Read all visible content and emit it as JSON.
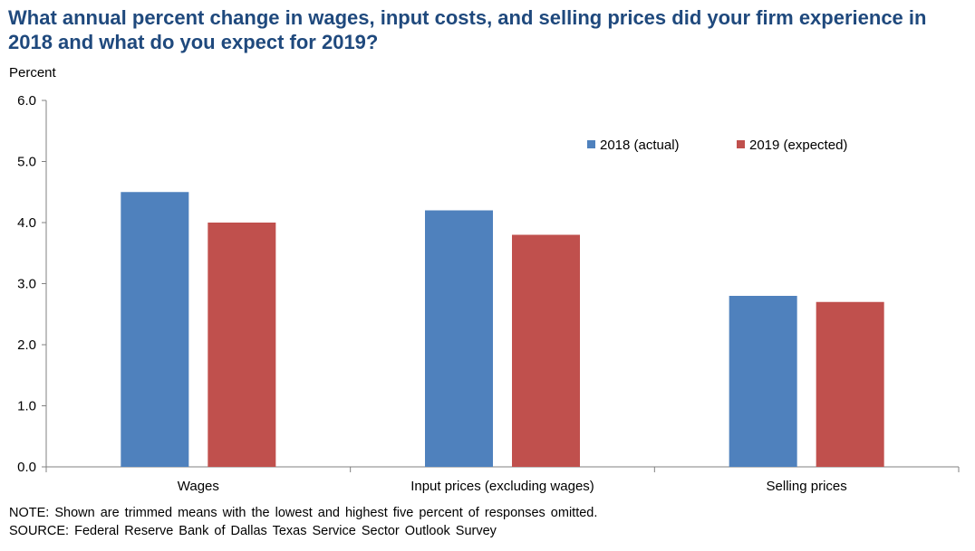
{
  "title": "What annual percent change in wages, input costs, and selling prices did your firm experience in 2018 and what do you expect for 2019?",
  "unit_label": "Percent",
  "note": "NOTE: Shown are trimmed means with the lowest and highest five percent of responses omitted.",
  "source": "SOURCE: Federal Reserve Bank of Dallas Texas Service Sector Outlook Survey",
  "chart_data": {
    "type": "bar",
    "categories": [
      "Wages",
      "Input prices (excluding wages)",
      "Selling prices"
    ],
    "series": [
      {
        "name": "2018 (actual)",
        "values": [
          4.5,
          4.2,
          2.8
        ],
        "color": "#4f81bd"
      },
      {
        "name": "2019 (expected)",
        "values": [
          4.0,
          3.8,
          2.7
        ],
        "color": "#c0504d"
      }
    ],
    "ylim": [
      0,
      6
    ],
    "yticks": [
      "0.0",
      "1.0",
      "2.0",
      "3.0",
      "4.0",
      "5.0",
      "6.0"
    ],
    "legend_position": "top-right",
    "grid": false
  }
}
